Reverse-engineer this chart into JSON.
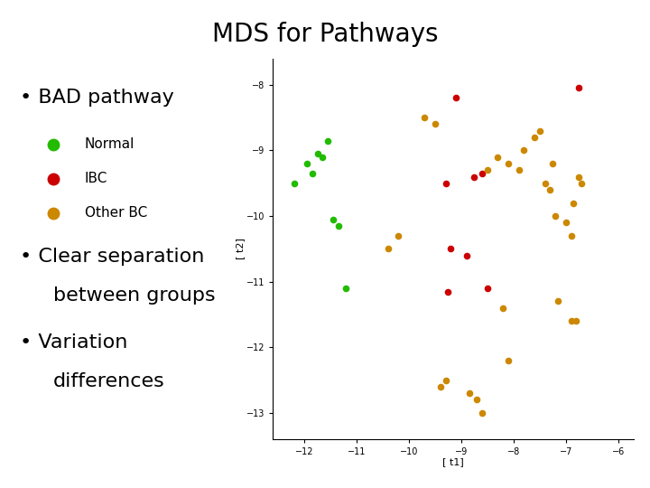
{
  "title": "MDS for Pathways",
  "bullet1": "BAD pathway",
  "legend_normal": "Normal",
  "legend_ibc": "IBC",
  "legend_otherbc": "Other BC",
  "bullet2_line1": "Clear separation",
  "bullet2_line2": "between groups",
  "bullet3_line1": "Variation",
  "bullet3_line2": "differences",
  "color_normal": "#22bb00",
  "color_ibc": "#cc0000",
  "color_otherbc": "#cc8800",
  "xlabel": "[ t1]",
  "ylabel": "[ t2]",
  "xlim": [
    -12.6,
    -5.7
  ],
  "ylim": [
    -13.4,
    -7.6
  ],
  "xticks": [
    -12,
    -11,
    -10,
    -9,
    -8,
    -7,
    -6
  ],
  "yticks": [
    -13,
    -12,
    -11,
    -10,
    -9,
    -8
  ],
  "normal_x": [
    -12.2,
    -11.95,
    -11.85,
    -11.75,
    -11.65,
    -11.55,
    -11.45,
    -11.35,
    -11.2
  ],
  "normal_y": [
    -9.5,
    -9.2,
    -9.35,
    -9.05,
    -9.1,
    -8.85,
    -10.05,
    -10.15,
    -11.1
  ],
  "ibc_x": [
    -9.1,
    -9.3,
    -9.2,
    -8.9,
    -8.75,
    -8.6,
    -6.75,
    -8.5,
    -9.25
  ],
  "ibc_y": [
    -8.2,
    -9.5,
    -10.5,
    -10.6,
    -9.4,
    -9.35,
    -8.05,
    -11.1,
    -11.15
  ],
  "otherbc_x": [
    -10.2,
    -10.4,
    -9.7,
    -9.5,
    -8.5,
    -8.3,
    -8.1,
    -7.9,
    -7.8,
    -7.6,
    -7.5,
    -7.4,
    -7.3,
    -7.25,
    -7.2,
    -7.0,
    -6.9,
    -6.85,
    -6.8,
    -6.75,
    -6.7,
    -9.3,
    -9.4,
    -8.85,
    -8.7,
    -7.15,
    -8.2,
    -6.9,
    -8.6,
    -8.1
  ],
  "otherbc_y": [
    -10.3,
    -10.5,
    -8.5,
    -8.6,
    -9.3,
    -9.1,
    -9.2,
    -9.3,
    -9.0,
    -8.8,
    -8.7,
    -9.5,
    -9.6,
    -9.2,
    -10.0,
    -10.1,
    -10.3,
    -9.8,
    -11.6,
    -9.4,
    -9.5,
    -12.5,
    -12.6,
    -12.7,
    -12.8,
    -11.3,
    -11.4,
    -11.6,
    -13.0,
    -12.2
  ],
  "title_fontsize": 20,
  "text_fontsize": 16,
  "legend_fontsize": 11,
  "marker_size": 30
}
